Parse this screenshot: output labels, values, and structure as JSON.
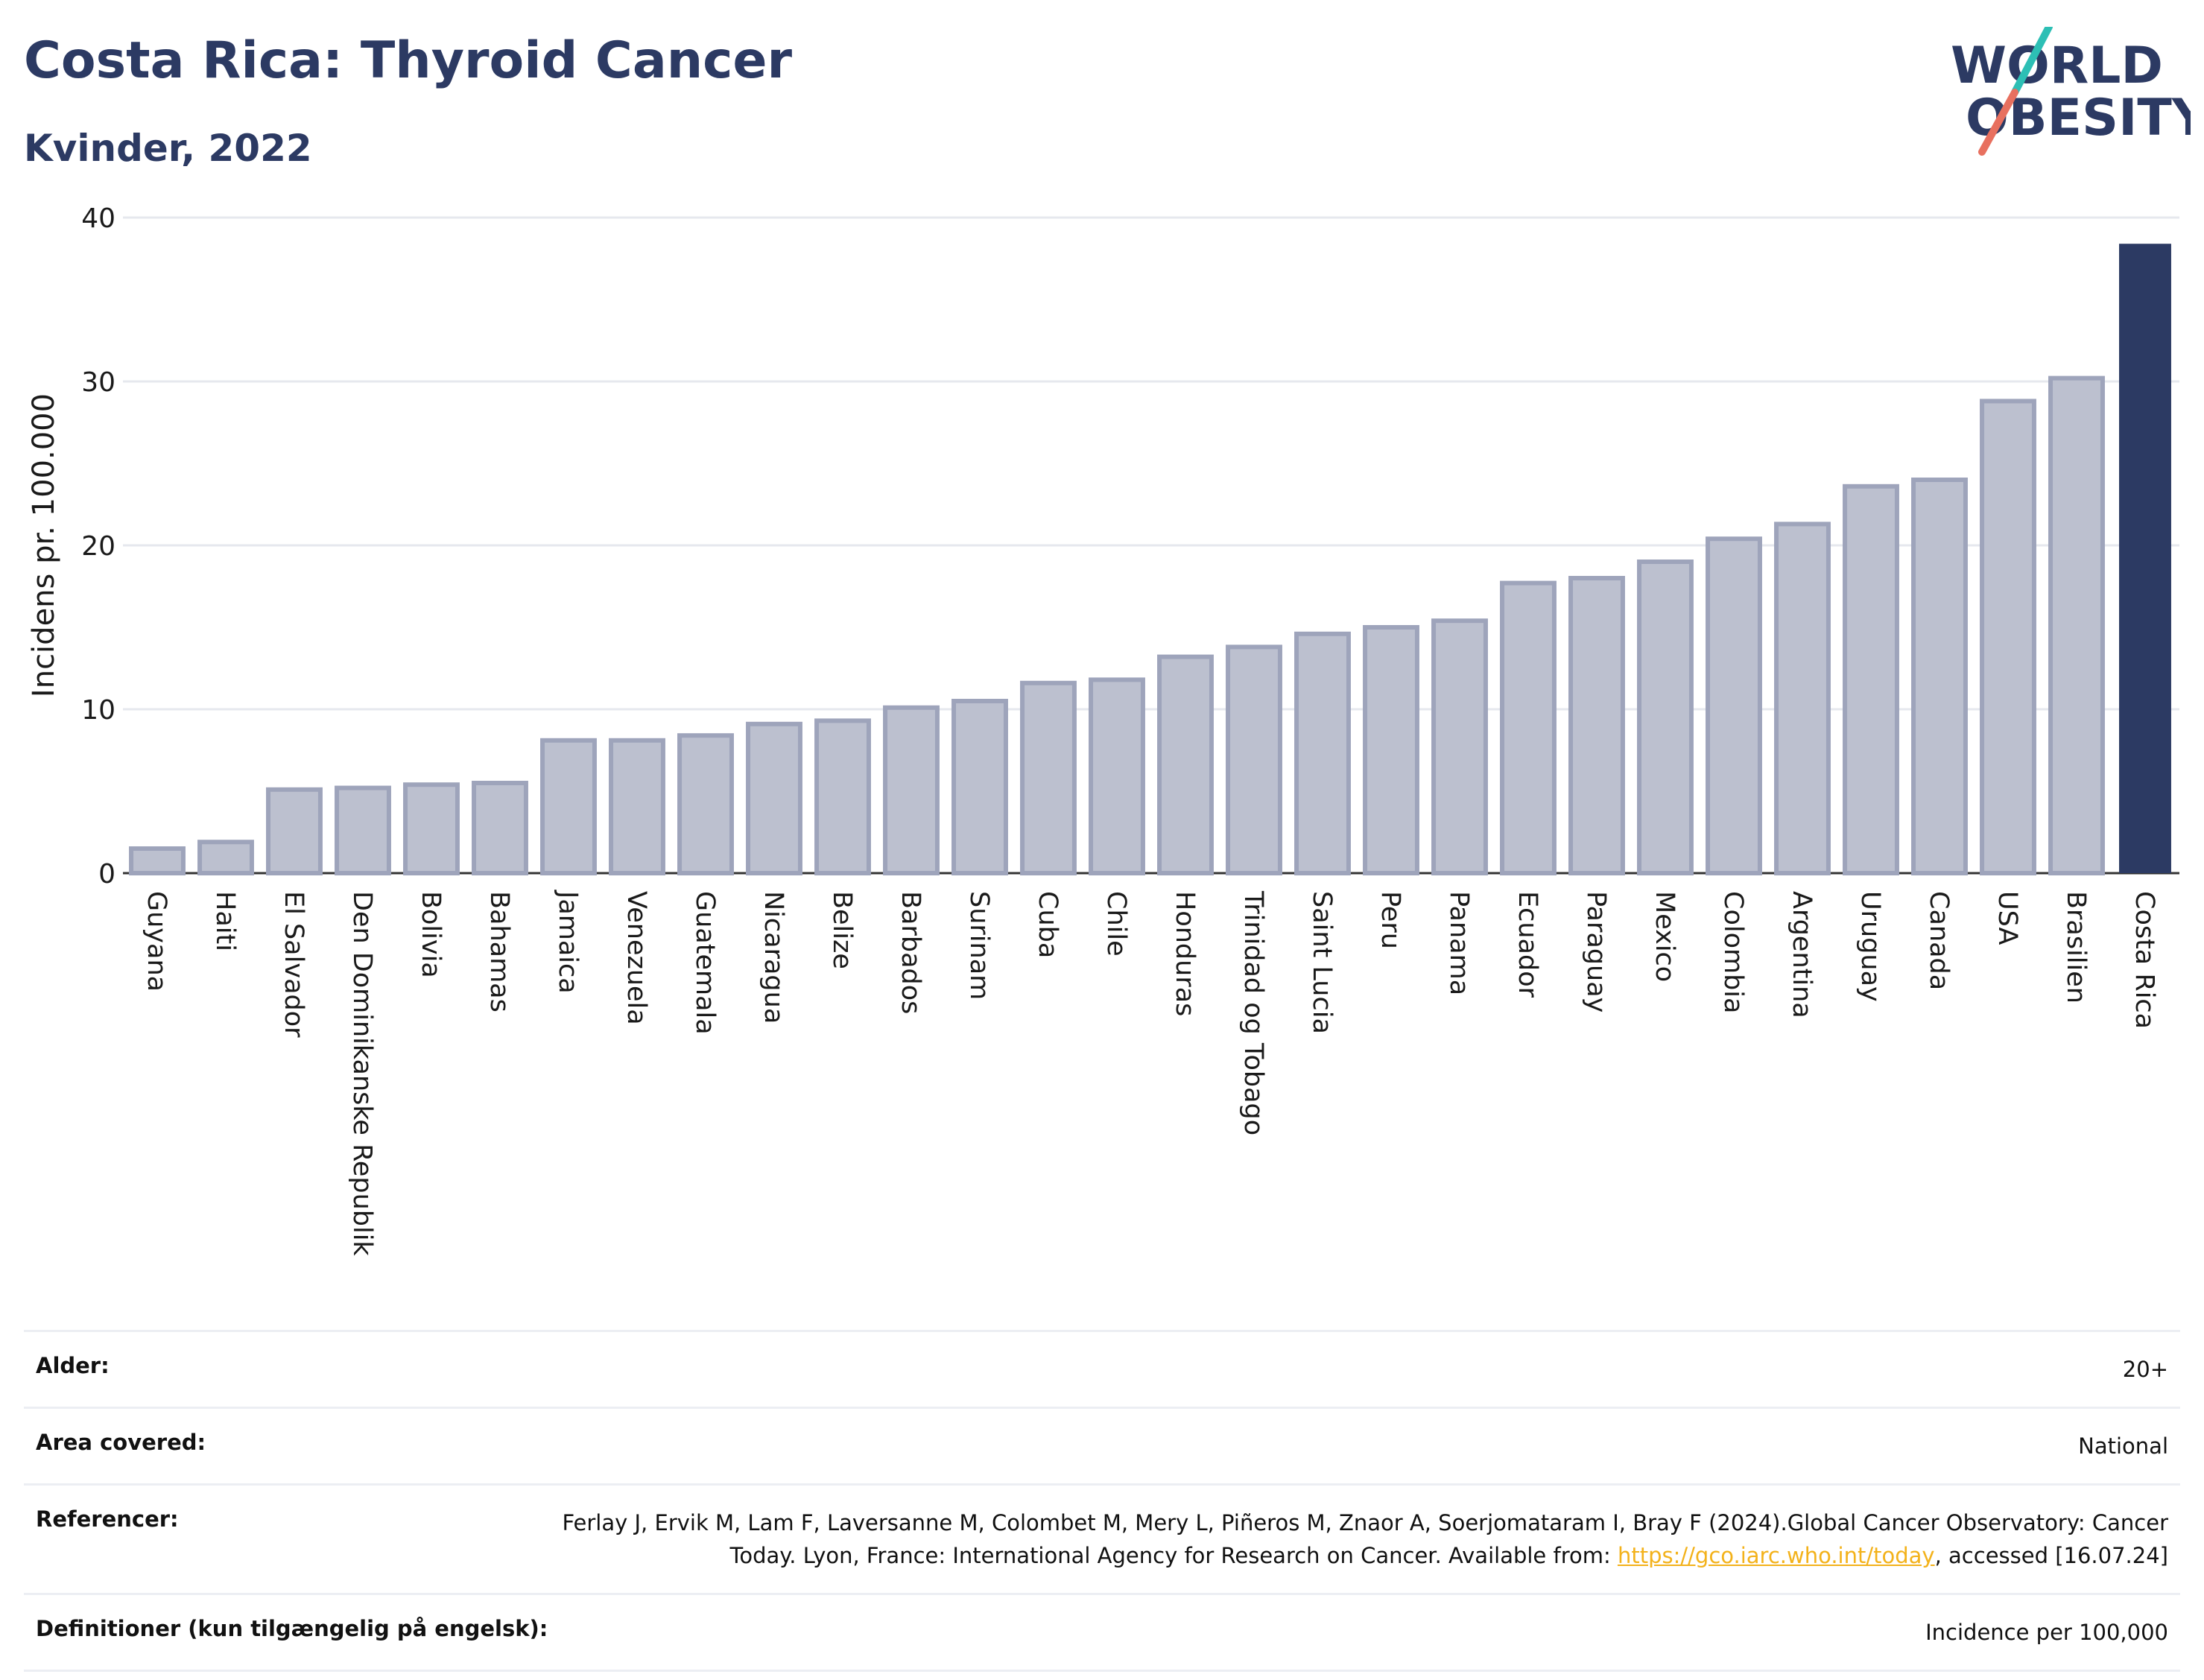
{
  "header": {
    "title": "Costa Rica: Thyroid Cancer",
    "subtitle": "Kvinder, 2022",
    "logo_line1": "WORLD",
    "logo_line2": "OBESITY"
  },
  "colors": {
    "title": "#2c3a63",
    "bar": "#bcc0cf",
    "bar_border": "#9ea4bb",
    "highlight": "#2c3a63",
    "grid": "#e6e8ee",
    "logo_teal": "#2dbfb5",
    "logo_coral": "#e8705f",
    "link": "#f3b21b"
  },
  "chart_data": {
    "type": "bar",
    "ylabel": "Incidens pr. 100.000",
    "ylim": [
      0,
      40
    ],
    "yticks": [
      0,
      10,
      20,
      30,
      40
    ],
    "highlight": "Costa Rica",
    "categories": [
      "Guyana",
      "Haiti",
      "El Salvador",
      "Den Dominikanske Republik",
      "Bolivia",
      "Bahamas",
      "Jamaica",
      "Venezuela",
      "Guatemala",
      "Nicaragua",
      "Belize",
      "Barbados",
      "Surinam",
      "Cuba",
      "Chile",
      "Honduras",
      "Trinidad og Tobago",
      "Saint Lucia",
      "Peru",
      "Panama",
      "Ecuador",
      "Paraguay",
      "Mexico",
      "Colombia",
      "Argentina",
      "Uruguay",
      "Canada",
      "USA",
      "Brasilien",
      "Costa Rica"
    ],
    "values": [
      1.5,
      1.9,
      5.1,
      5.2,
      5.4,
      5.5,
      8.1,
      8.1,
      8.4,
      9.1,
      9.3,
      10.1,
      10.5,
      11.6,
      11.8,
      13.2,
      13.8,
      14.6,
      15.0,
      15.4,
      17.7,
      18.0,
      19.0,
      20.4,
      21.3,
      23.6,
      24.0,
      28.8,
      30.2,
      38.4
    ]
  },
  "info": {
    "age_label": "Alder:",
    "age_value": "20+",
    "area_label": "Area covered:",
    "area_value": "National",
    "ref_label": "Referencer:",
    "ref_text_1": "Ferlay J, Ervik M, Lam F, Laversanne M, Colombet M, Mery L, Piñeros M, Znaor A, Soerjomataram I, Bray F (2024).Global Cancer Observatory: Cancer Today. Lyon, France: International Agency for Research on Cancer. Available from: ",
    "ref_link": "https://gco.iarc.who.int/today",
    "ref_text_2": ", accessed [16.07.24]",
    "def_label": "Definitioner (kun tilgængelig på engelsk):",
    "def_value": "Incidence per 100,000"
  }
}
